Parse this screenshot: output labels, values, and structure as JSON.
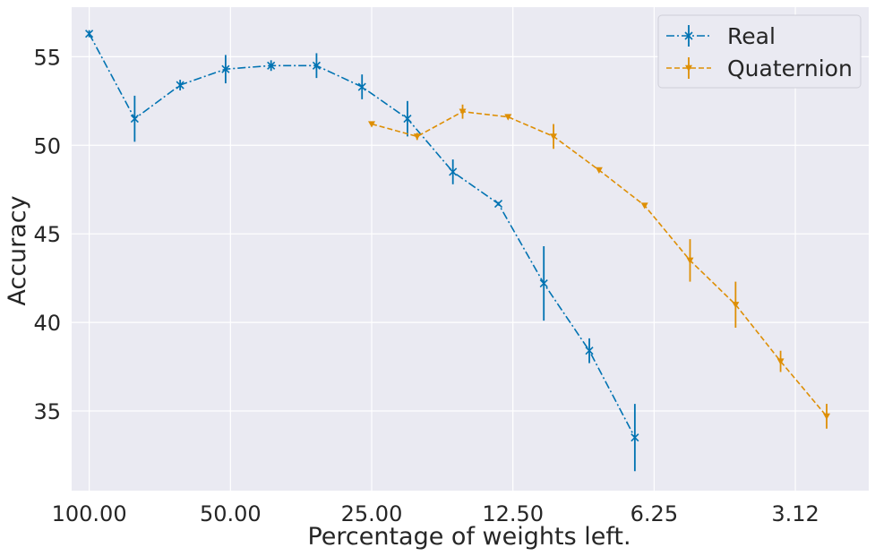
{
  "chart_data": {
    "type": "line",
    "xlabel": "Percentage of weights left.",
    "ylabel": "Accuracy",
    "x_scale": "log2",
    "x_reversed": true,
    "xlim": [
      109.0,
      2.18
    ],
    "ylim": [
      30.5,
      57.8
    ],
    "x_ticks": [
      100,
      50,
      25,
      12.5,
      6.25,
      3.125
    ],
    "x_tick_labels": [
      "100.00",
      "50.00",
      "25.00",
      "12.50",
      "6.25",
      "3.12"
    ],
    "y_ticks": [
      35,
      40,
      45,
      50,
      55
    ],
    "y_tick_labels": [
      "35",
      "40",
      "45",
      "50",
      "55"
    ],
    "grid": true,
    "legend_position": "top-right",
    "background_color": "#eaeaf2",
    "series": [
      {
        "name": "Real",
        "color": "#0173b2",
        "marker": "x",
        "line_style": "dashdot",
        "x": [
          100,
          80,
          64,
          51.2,
          40.96,
          32.77,
          26.21,
          20.97,
          16.78,
          13.42,
          10.74,
          8.59,
          6.87
        ],
        "y": [
          56.3,
          51.5,
          53.4,
          54.3,
          54.5,
          54.5,
          53.3,
          51.5,
          48.5,
          46.7,
          42.2,
          38.4,
          33.5
        ],
        "err": [
          0.2,
          1.3,
          0.3,
          0.8,
          0.3,
          0.7,
          0.7,
          1.0,
          0.7,
          0.1,
          2.1,
          0.7,
          1.9
        ]
      },
      {
        "name": "Quaternion",
        "color": "#de8f05",
        "marker": "v",
        "line_style": "dashed",
        "x": [
          25.0,
          20.0,
          16.0,
          12.8,
          10.24,
          8.19,
          6.55,
          5.24,
          4.19,
          3.36,
          2.68
        ],
        "y": [
          51.2,
          50.5,
          51.9,
          51.6,
          50.5,
          48.6,
          46.6,
          43.5,
          41.0,
          37.8,
          34.7
        ],
        "err": [
          0.1,
          0.2,
          0.4,
          0.1,
          0.7,
          0.1,
          0.1,
          1.2,
          1.3,
          0.6,
          0.7
        ]
      }
    ]
  }
}
